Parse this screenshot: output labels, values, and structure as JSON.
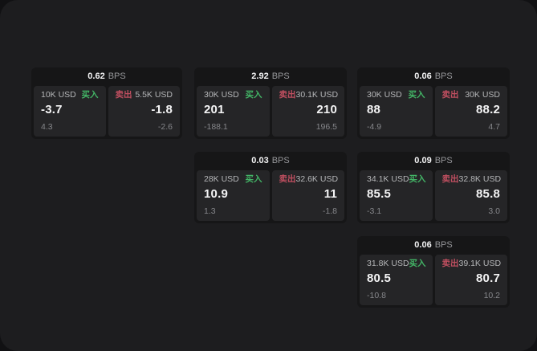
{
  "theme": {
    "page_bg": "#111113",
    "panel_bg": "#1d1d1f",
    "card_bg": "#161617",
    "tile_bg": "#252527",
    "buy_color": "#43b566",
    "sell_color": "#c04f60",
    "value_color": "#f4f4f5",
    "label_color": "#b5b6b8",
    "sub_color": "#85868a",
    "bps_unit_color": "#96979a"
  },
  "labels": {
    "buy": "买入",
    "sell": "卖出",
    "bps": "BPS"
  },
  "cards": [
    {
      "bps": "0.62",
      "buy": {
        "amount": "10K USD",
        "value": "-3.7",
        "sub": "4.3"
      },
      "sell": {
        "amount": "5.5K USD",
        "value": "-1.8",
        "sub": "-2.6"
      }
    },
    {
      "bps": "2.92",
      "buy": {
        "amount": "30K USD",
        "value": "201",
        "sub": "-188.1"
      },
      "sell": {
        "amount": "30.1K USD",
        "value": "210",
        "sub": "196.5"
      }
    },
    {
      "bps": "0.06",
      "buy": {
        "amount": "30K USD",
        "value": "88",
        "sub": "-4.9"
      },
      "sell": {
        "amount": "30K USD",
        "value": "88.2",
        "sub": "4.7"
      }
    },
    {
      "bps": "0.03",
      "buy": {
        "amount": "28K USD",
        "value": "10.9",
        "sub": "1.3"
      },
      "sell": {
        "amount": "32.6K USD",
        "value": "11",
        "sub": "-1.8"
      }
    },
    {
      "bps": "0.09",
      "buy": {
        "amount": "34.1K USD",
        "value": "85.5",
        "sub": "-3.1"
      },
      "sell": {
        "amount": "32.8K USD",
        "value": "85.8",
        "sub": "3.0"
      }
    },
    {
      "bps": "0.06",
      "buy": {
        "amount": "31.8K USD",
        "value": "80.5",
        "sub": "-10.8"
      },
      "sell": {
        "amount": "39.1K USD",
        "value": "80.7",
        "sub": "10.2"
      }
    }
  ]
}
